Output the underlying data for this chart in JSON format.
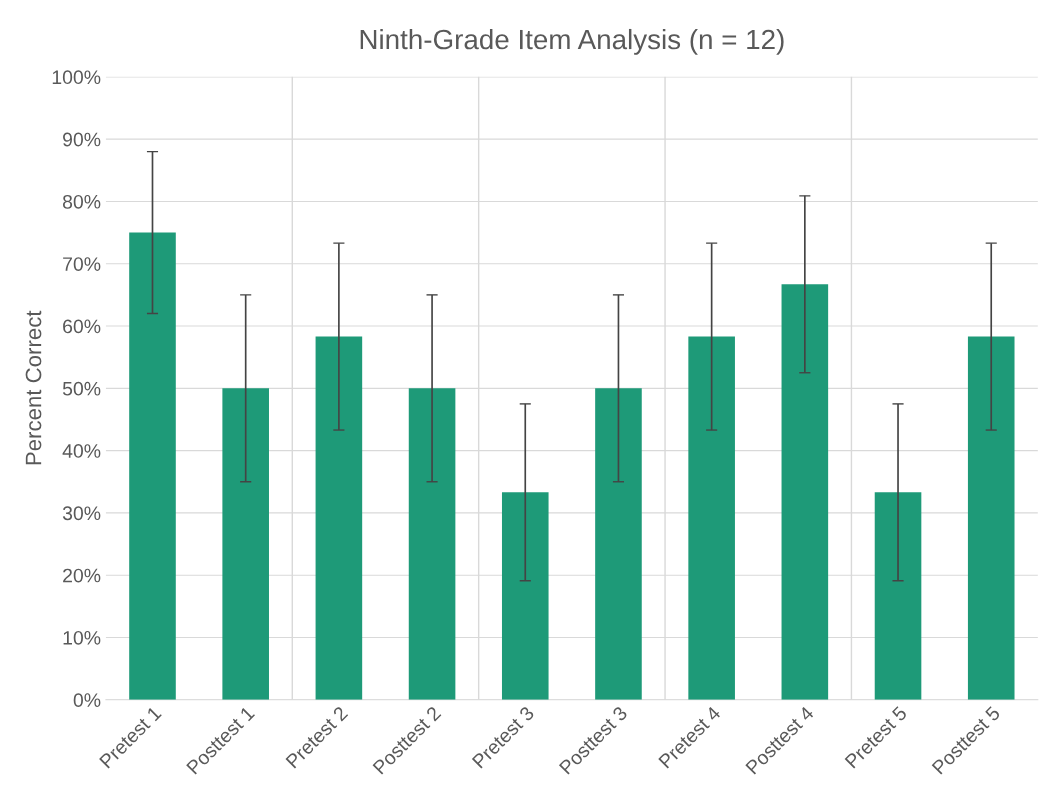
{
  "chart_data": {
    "type": "bar",
    "title": "Ninth-Grade Item Analysis (n = 12)",
    "ylabel": "Percent Correct",
    "categories": [
      "Pretest 1",
      "Posttest 1",
      "Pretest 2",
      "Posttest 2",
      "Pretest 3",
      "Posttest 3",
      "Pretest 4",
      "Posttest 4",
      "Pretest 5",
      "Posttest 5"
    ],
    "values": [
      75,
      50,
      58.3,
      50,
      33.3,
      50,
      58.3,
      66.7,
      33.3,
      58.3
    ],
    "errors": [
      13,
      15,
      15,
      15,
      14.2,
      15,
      15,
      14.2,
      14.2,
      15
    ],
    "color": "#1e9a78",
    "ylim": [
      0,
      100
    ],
    "yticks": [
      {
        "value": 0,
        "label": "0%"
      },
      {
        "value": 10,
        "label": "10%"
      },
      {
        "value": 20,
        "label": "20%"
      },
      {
        "value": 30,
        "label": "30%"
      },
      {
        "value": 40,
        "label": "40%"
      },
      {
        "value": 50,
        "label": "50%"
      },
      {
        "value": 60,
        "label": "60%"
      },
      {
        "value": 70,
        "label": "70%"
      },
      {
        "value": 80,
        "label": "80%"
      },
      {
        "value": 90,
        "label": "90%"
      },
      {
        "value": 100,
        "label": "100%"
      }
    ],
    "grid": "y"
  }
}
